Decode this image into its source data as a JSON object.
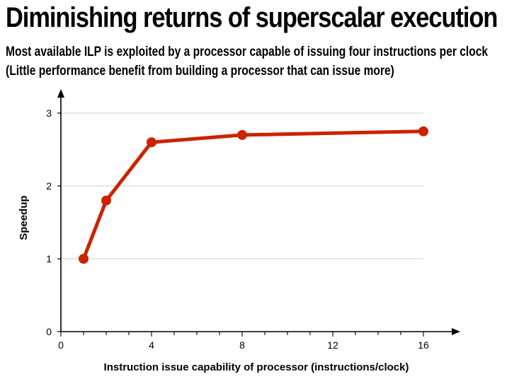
{
  "slide": {
    "title": "Diminishing returns of superscalar execution",
    "subtitle_lines": [
      "Most available ILP is exploited by a processor capable of issuing four instructions per clock",
      "(Little performance benefit from building a processor that can issue more)"
    ]
  },
  "chart_data": {
    "type": "line",
    "title": "Diminishing returns of superscalar execution",
    "xlabel": "Instruction issue capability of processor (instructions/clock)",
    "ylabel": "Speedup",
    "xlim": [
      0,
      16
    ],
    "ylim": [
      0,
      3
    ],
    "x_ticks": [
      0,
      4,
      8,
      12,
      16
    ],
    "y_ticks": [
      0,
      1,
      2,
      3
    ],
    "grid": "horizontal",
    "legend": "none",
    "series": [
      {
        "name": "Speedup",
        "color": "#cc2200",
        "x": [
          1,
          2,
          4,
          8,
          16
        ],
        "y": [
          1.0,
          1.8,
          2.6,
          2.7,
          2.75
        ]
      }
    ]
  }
}
